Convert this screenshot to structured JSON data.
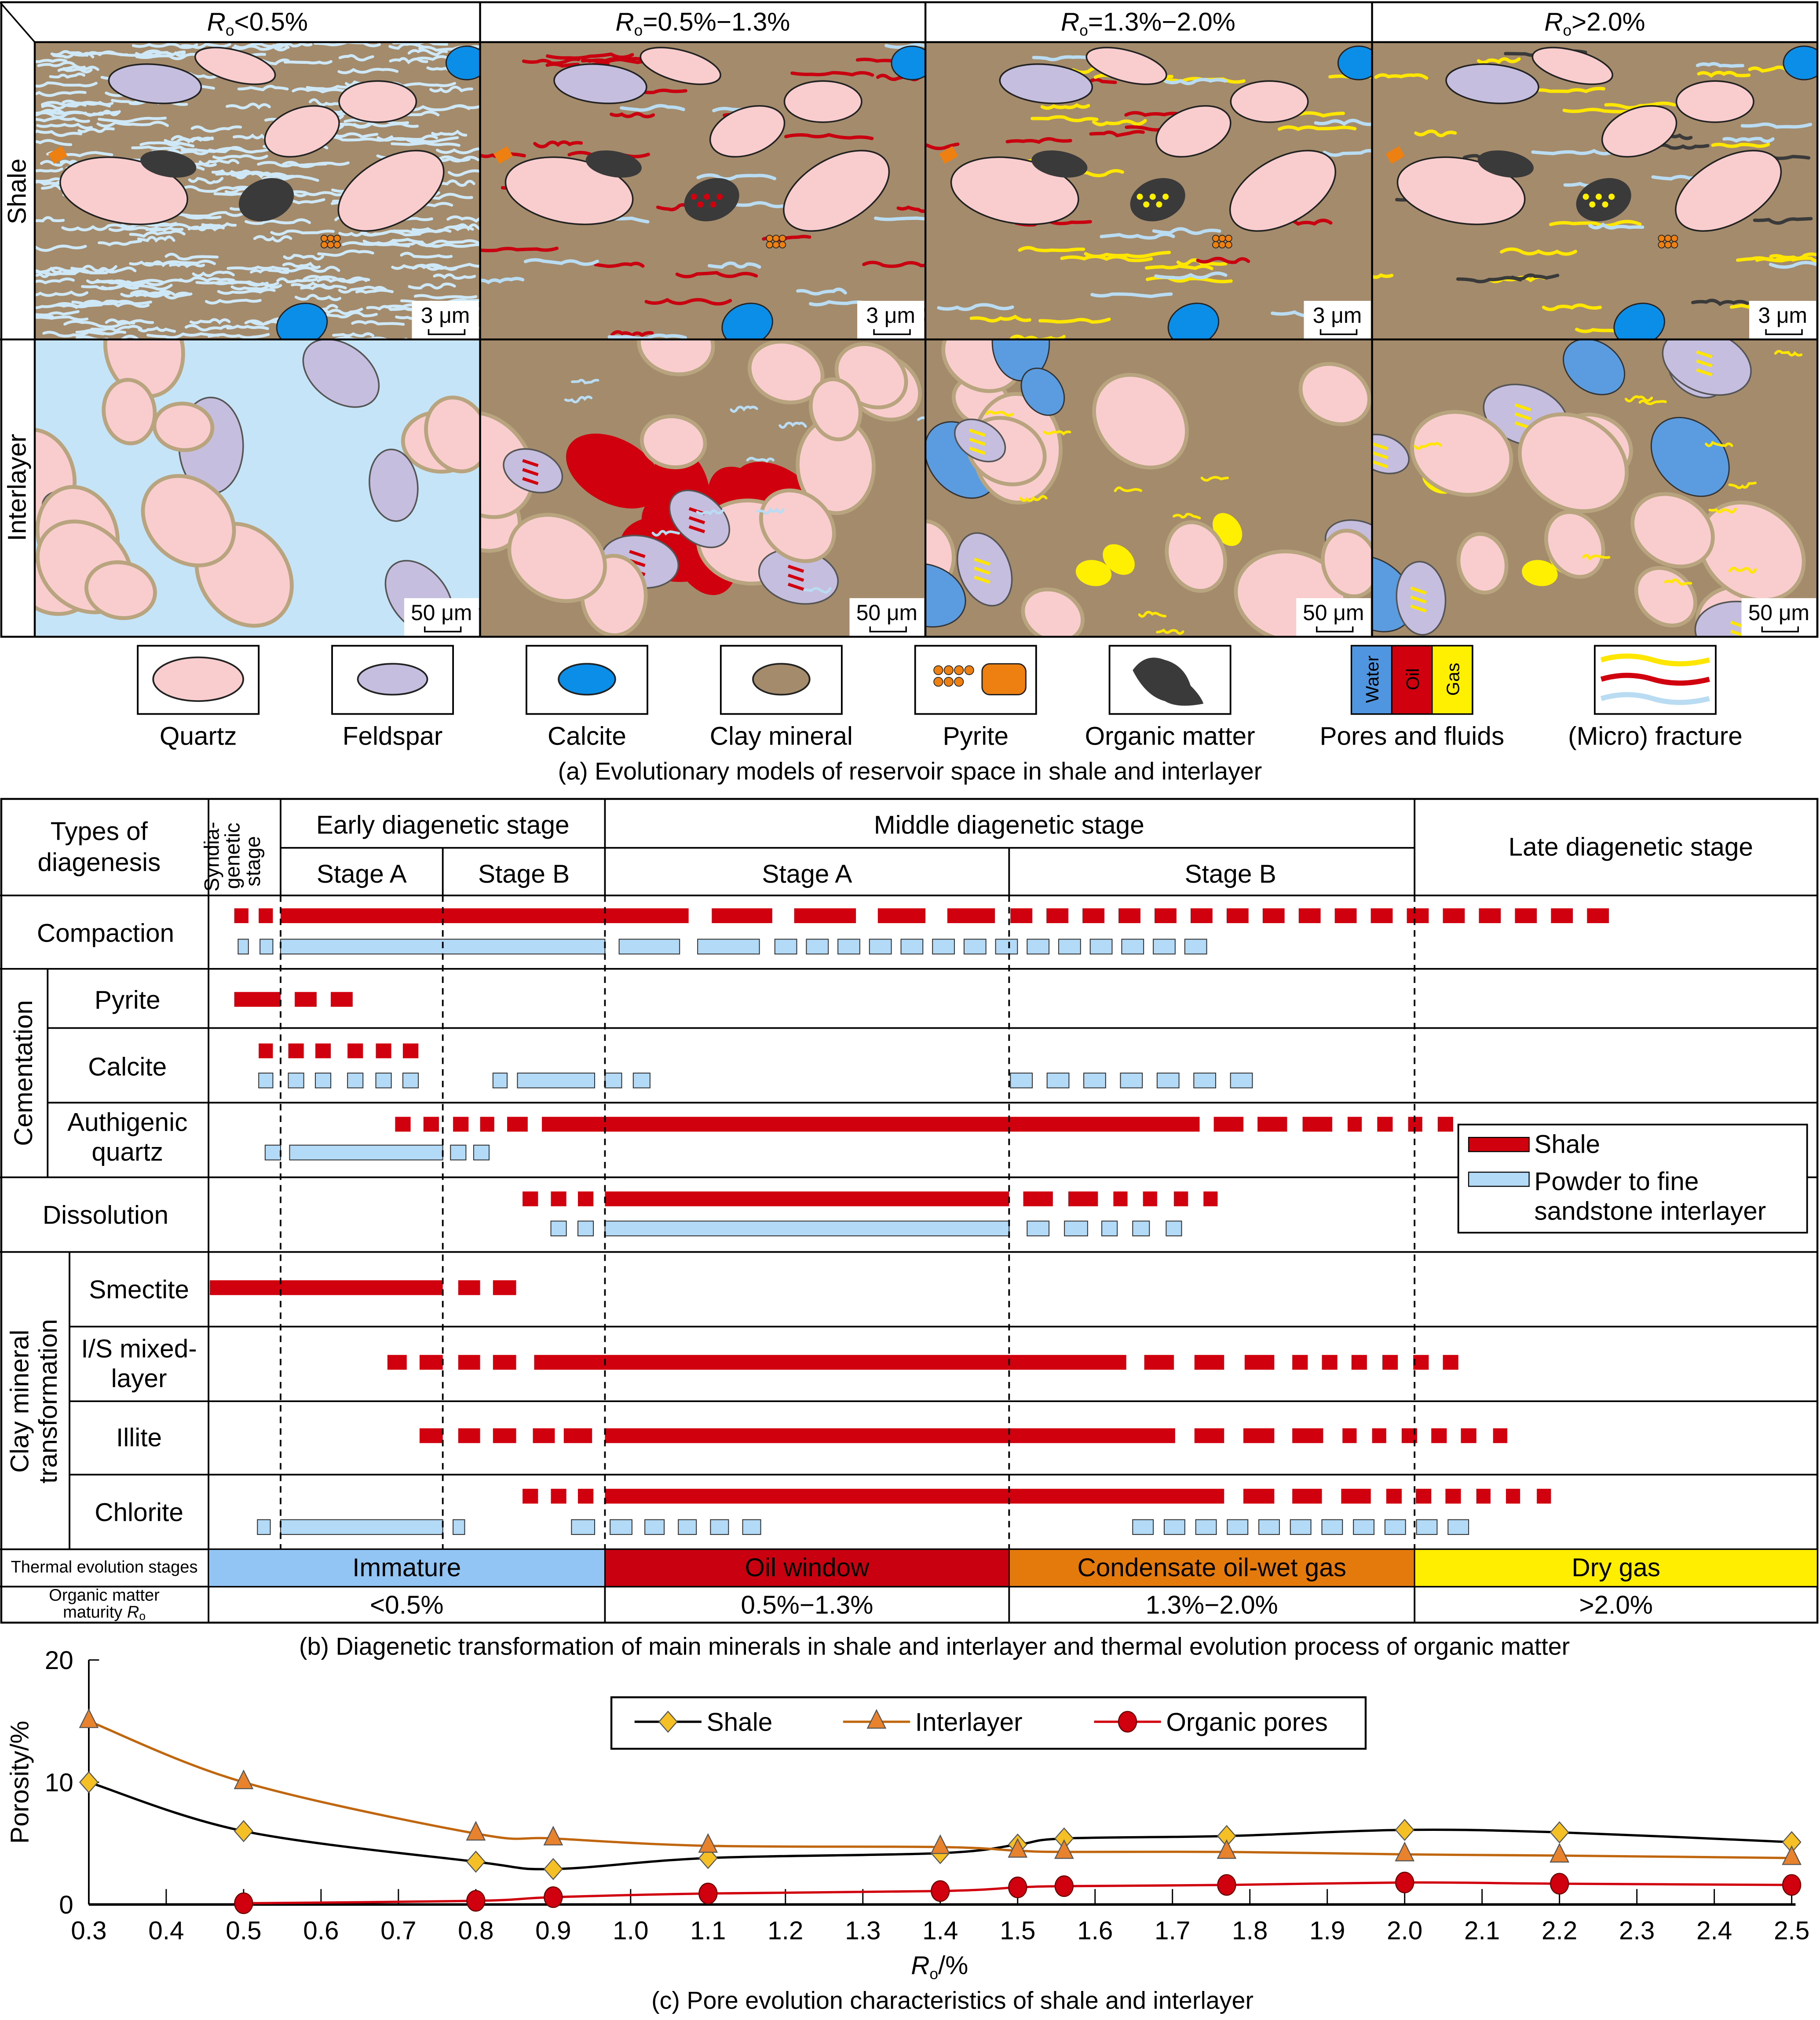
{
  "panel_a": {
    "columns": [
      {
        "r": "R",
        "sub": "o",
        "rest": "<0.5%"
      },
      {
        "r": "R",
        "sub": "o",
        "rest": "=0.5%−1.3%"
      },
      {
        "r": "R",
        "sub": "o",
        "rest": "=1.3%−2.0%"
      },
      {
        "r": "R",
        "sub": "o",
        "rest": ">2.0%"
      }
    ],
    "rows": [
      "Shale",
      "Interlayer"
    ],
    "scale_shale": "3 μm",
    "scale_interlayer": "50 μm",
    "legend": [
      {
        "label": "Quartz",
        "color": "#f9cdcd"
      },
      {
        "label": "Feldspar",
        "color": "#c6bedf"
      },
      {
        "label": "Calcite",
        "color": "#0a8ee8"
      },
      {
        "label": "Clay mineral",
        "color": "#a38b6b"
      },
      {
        "label": "Pyrite",
        "color": "#ee8011"
      },
      {
        "label": "Organic matter",
        "color": "#3a3a3a"
      },
      {
        "label": "Pores and fluids",
        "fluids": [
          "Water",
          "Oil",
          "Gas"
        ],
        "colors": [
          "#4f95e0",
          "#d0000f",
          "#ffef00"
        ]
      },
      {
        "label": "(Micro) fracture"
      }
    ],
    "caption": "(a) Evolutionary models of reservoir space in shale and interlayer"
  },
  "panel_b": {
    "header": {
      "types": [
        "Types of",
        "diagenesis"
      ],
      "syndiagenetic": [
        "Syndia-",
        "genetic",
        "stage"
      ],
      "early": "Early diagenetic stage",
      "middle": "Middle diagenetic stage",
      "late": "Late diagenetic stage",
      "stage_a": "Stage A",
      "stage_b": "Stage B"
    },
    "groups": {
      "cementation": "Cementation",
      "clay": [
        "Clay mineral",
        "transformation"
      ]
    },
    "rows": {
      "compaction": "Compaction",
      "pyrite": "Pyrite",
      "calcite": "Calcite",
      "quartz": [
        "Authigenic",
        "quartz"
      ],
      "dissolution": "Dissolution",
      "smectite": "Smectite",
      "is": [
        "I/S mixed-",
        "layer"
      ],
      "illite": "Illite",
      "chlorite": "Chlorite"
    },
    "legend": {
      "shale": "Shale",
      "interlayer": [
        "Powder to fine",
        "sandstone interlayer"
      ]
    },
    "thermal_label": "Thermal evolution stages",
    "maturity_label": [
      "Organic matter",
      "maturity "
    ],
    "maturity_r": "R",
    "maturity_sub": "o",
    "thermal_stages": [
      {
        "name": "Immature",
        "range": "<0.5%",
        "color": "#93c5f4"
      },
      {
        "name": "Oil window",
        "range": "0.5%−1.3%",
        "color": "#c9000f"
      },
      {
        "name": "Condensate oil-wet gas",
        "range": "1.3%−2.0%",
        "color": "#e57a0c"
      },
      {
        "name": "Dry gas",
        "range": ">2.0%",
        "color": "#ffee00"
      }
    ],
    "colors": {
      "shale": "#d0000f",
      "interlayer": "#b3dbf8"
    },
    "caption": "(b) Diagenetic transformation of main minerals in shale and interlayer and thermal evolution process of organic matter"
  },
  "chart_data": {
    "type": "line",
    "ylabel": "Porosity/%",
    "xlabel_r": "R",
    "xlabel_sub": "o",
    "xlabel_rest": "/%",
    "xlim": [
      0.3,
      2.5
    ],
    "ylim": [
      0,
      20
    ],
    "xticks": [
      "0.3",
      "0.4",
      "0.5",
      "0.6",
      "0.7",
      "0.8",
      "0.9",
      "1.0",
      "1.1",
      "1.2",
      "1.3",
      "1.4",
      "1.5",
      "1.6",
      "1.7",
      "1.8",
      "1.9",
      "2.0",
      "2.1",
      "2.2",
      "2.3",
      "2.4",
      "2.5"
    ],
    "yticks": [
      "0",
      "10",
      "20"
    ],
    "legend_position": "top-center",
    "series": [
      {
        "name": "Shale",
        "marker": "diamond",
        "color": "#f5c026",
        "line": "#000000",
        "x": [
          0.3,
          0.5,
          0.8,
          0.9,
          1.1,
          1.4,
          1.5,
          1.56,
          1.77,
          2.0,
          2.2,
          2.5
        ],
        "y": [
          10,
          6,
          3.5,
          2.9,
          3.8,
          4.2,
          4.9,
          5.4,
          5.6,
          6.1,
          5.9,
          5.1
        ]
      },
      {
        "name": "Interlayer",
        "marker": "triangle",
        "color": "#e8822c",
        "line": "#c0660f",
        "x": [
          0.3,
          0.5,
          0.8,
          0.9,
          1.1,
          1.4,
          1.5,
          1.56,
          1.77,
          2.0,
          2.2,
          2.5
        ],
        "y": [
          15,
          10,
          5.8,
          5.4,
          4.8,
          4.7,
          4.4,
          4.3,
          4.3,
          4.1,
          4.0,
          3.8
        ]
      },
      {
        "name": "Organic pores",
        "marker": "circle",
        "color": "#d0000f",
        "line": "#d0000f",
        "x": [
          0.5,
          0.8,
          0.9,
          1.1,
          1.4,
          1.5,
          1.56,
          1.77,
          2.0,
          2.2,
          2.5
        ],
        "y": [
          0.1,
          0.3,
          0.6,
          0.9,
          1.1,
          1.4,
          1.5,
          1.6,
          1.8,
          1.7,
          1.6
        ]
      }
    ],
    "caption": "(c) Pore evolution characteristics of shale and interlayer"
  }
}
